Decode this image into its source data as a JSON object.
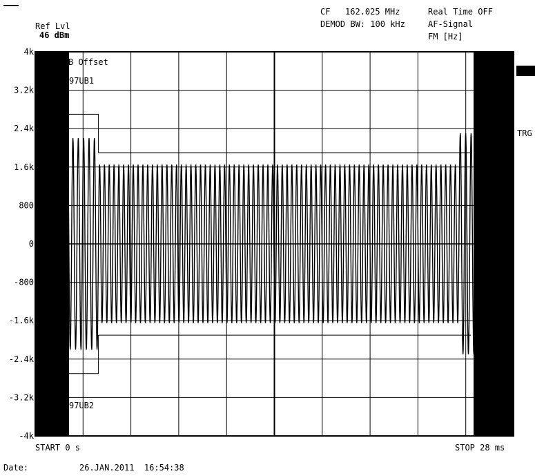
{
  "header": {
    "ref_lvl_label": "Ref Lvl",
    "ref_lvl_value": "46 dBm",
    "cf_label": "CF",
    "cf_value": "162.025 MHz",
    "demod_bw": "DEMOD BW: 100 kHz",
    "realtime": "Real Time OFF",
    "af_signal": "AF-Signal",
    "fm_unit": "FM [Hz]"
  },
  "side": {
    "trg_label": "TRG"
  },
  "overlay": {
    "offset_label": "B Offset",
    "limit_upper": "97UB1",
    "limit_lower": "97UB2"
  },
  "footer": {
    "start": "START 0 s",
    "stop": "STOP 28 ms",
    "date_label": "Date:",
    "date_value": "26.JAN.2011  16:54:38"
  },
  "chart_data": {
    "type": "line",
    "title": "",
    "xlabel": "",
    "ylabel": "FM [Hz]",
    "xlim": [
      0,
      28
    ],
    "x_unit": "ms",
    "ylim": [
      -4000,
      4000
    ],
    "yticks": [
      4000,
      3200,
      2400,
      1600,
      800,
      0,
      -800,
      -1600,
      -2400,
      -3200,
      -4000
    ],
    "ytick_labels": [
      "4k",
      "3.2k",
      "2.4k",
      "1.6k",
      "800",
      "0",
      "-800",
      "-1.6k",
      "-2.4k",
      "-3.2k",
      "-4k"
    ],
    "grid": true,
    "series": [
      {
        "segments": [
          {
            "t_start": 1.5,
            "t_end": 3.7,
            "amplitude": 2200,
            "cycles": 7
          },
          {
            "t_start": 3.7,
            "t_end": 24.8,
            "amplitude": 1650,
            "cycles": 75
          },
          {
            "t_start": 24.8,
            "t_end": 26.7,
            "amplitude": 2300,
            "cycles": 6
          }
        ]
      }
    ],
    "limit_lines": [
      {
        "name": "97UB1",
        "points": [
          [
            1.5,
            3600
          ],
          [
            1.8,
            3600
          ],
          [
            1.8,
            2700
          ],
          [
            3.7,
            2700
          ],
          [
            3.7,
            1900
          ],
          [
            25.5,
            1900
          ]
        ]
      },
      {
        "name": "97UB2",
        "points": [
          [
            1.5,
            -3400
          ],
          [
            1.8,
            -3400
          ],
          [
            1.8,
            -2700
          ],
          [
            3.7,
            -2700
          ],
          [
            3.7,
            -1900
          ],
          [
            25.5,
            -1900
          ]
        ]
      }
    ]
  }
}
